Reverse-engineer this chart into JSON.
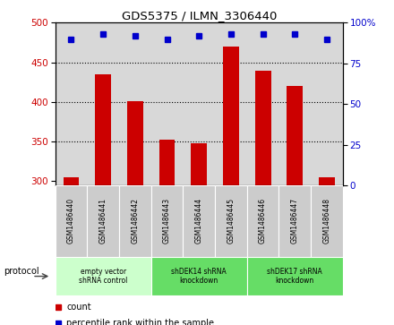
{
  "title": "GDS5375 / ILMN_3306440",
  "samples": [
    "GSM1486440",
    "GSM1486441",
    "GSM1486442",
    "GSM1486443",
    "GSM1486444",
    "GSM1486445",
    "GSM1486446",
    "GSM1486447",
    "GSM1486448"
  ],
  "counts": [
    305,
    435,
    401,
    352,
    348,
    470,
    440,
    420,
    305
  ],
  "percentiles": [
    90,
    93,
    92,
    90,
    92,
    93,
    93,
    93,
    90
  ],
  "ylim_left": [
    295,
    500
  ],
  "ylim_right": [
    0,
    100
  ],
  "yticks_left": [
    300,
    350,
    400,
    450,
    500
  ],
  "yticks_right": [
    0,
    25,
    50,
    75,
    100
  ],
  "ytick_right_labels": [
    "0",
    "25",
    "50",
    "75",
    "100%"
  ],
  "groups": [
    {
      "label": "empty vector\nshRNA control",
      "start": 0,
      "end": 3,
      "color": "#ccffcc"
    },
    {
      "label": "shDEK14 shRNA\nknockdown",
      "start": 3,
      "end": 6,
      "color": "#66dd66"
    },
    {
      "label": "shDEK17 shRNA\nknockdown",
      "start": 6,
      "end": 9,
      "color": "#66dd66"
    }
  ],
  "bar_color": "#cc0000",
  "marker_color": "#0000cc",
  "grid_dotted_ticks": [
    350,
    400,
    450
  ],
  "bg_color": "#d8d8d8",
  "plot_bg": "#ffffff",
  "left_label_color": "#cc0000",
  "right_label_color": "#0000cc",
  "protocol_label": "protocol",
  "legend_count": "count",
  "legend_pct": "percentile rank within the sample",
  "bar_width": 0.5
}
